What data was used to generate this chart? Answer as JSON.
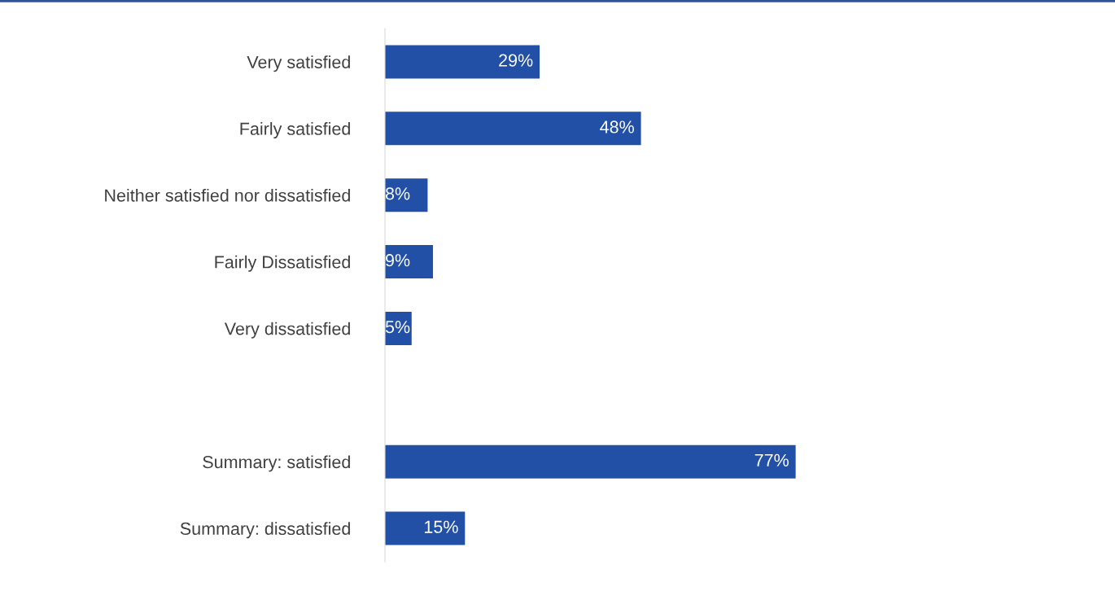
{
  "chart_data": {
    "type": "bar",
    "orientation": "horizontal",
    "categories": [
      "Very satisfied",
      "Fairly satisfied",
      "Neither satisfied nor dissatisfied",
      "Fairly Dissatisfied",
      "Very dissatisfied",
      null,
      "Summary: satisfied",
      "Summary: dissatisfied"
    ],
    "values": [
      29,
      48,
      8,
      9,
      5,
      null,
      77,
      15
    ],
    "value_labels": [
      "29%",
      "48%",
      "8%",
      "9%",
      "5%",
      null,
      "77%",
      "15%"
    ],
    "color": "#2150a6",
    "tick_labels": "y",
    "grid": false
  }
}
